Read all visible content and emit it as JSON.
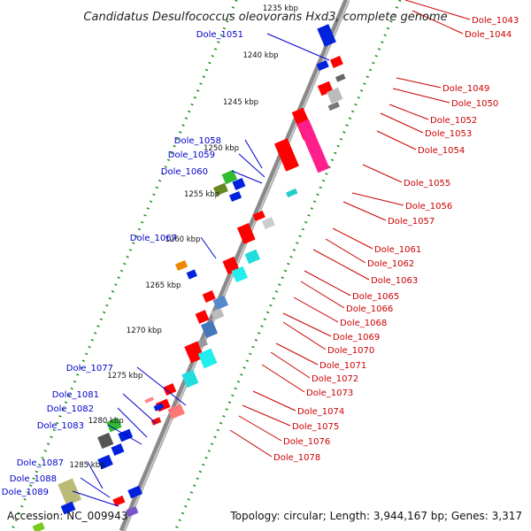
{
  "title": "Candidatus Desulfococcus oleovorans Hxd3, complete genome",
  "footer": {
    "accession": "Accession: NC_009943",
    "summary": "Topology: circular; Length: 3,944,167 bp; Genes: 3,317"
  },
  "ticks": [
    "1235 kbp",
    "1240 kbp",
    "1245 kbp",
    "1250 kbp",
    "1255 kbp",
    "1260 kbp",
    "1265 kbp",
    "1270 kbp",
    "1275 kbp",
    "1280 kbp",
    "1285 kbp"
  ],
  "colors": {
    "left_label": "#0000cc",
    "right_label": "#cc0000",
    "backbone": "#888888",
    "dots": "#1a8a1a"
  },
  "left_labels": [
    "Dole_1051",
    "Dole_1058",
    "Dole_1059",
    "Dole_1060",
    "Dole_1067",
    "Dole_1077",
    "Dole_1081",
    "Dole_1082",
    "Dole_1083",
    "Dole_1087",
    "Dole_1088",
    "Dole_1089"
  ],
  "right_labels": [
    "Dole_1043",
    "Dole_1044",
    "Dole_1049",
    "Dole_1050",
    "Dole_1052",
    "Dole_1053",
    "Dole_1054",
    "Dole_1055",
    "Dole_1056",
    "Dole_1057",
    "Dole_1061",
    "Dole_1062",
    "Dole_1063",
    "Dole_1065",
    "Dole_1066",
    "Dole_1068",
    "Dole_1069",
    "Dole_1070",
    "Dole_1071",
    "Dole_1072",
    "Dole_1073",
    "Dole_1074",
    "Dole_1075",
    "Dole_1076",
    "Dole_1078"
  ]
}
